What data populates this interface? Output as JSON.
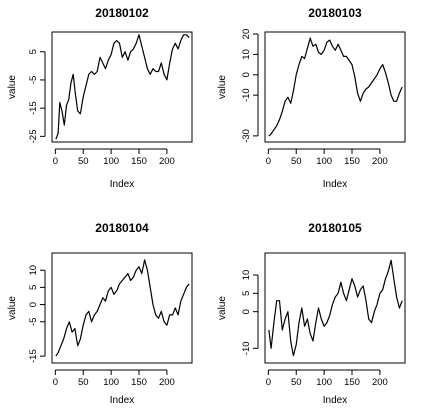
{
  "chart_data": [
    {
      "type": "line",
      "title": "20180102",
      "xlabel": "Index",
      "ylabel": "value",
      "xlim": [
        -6,
        245
      ],
      "ylim": [
        -27,
        12
      ],
      "xticks": [
        0,
        50,
        100,
        150,
        200
      ],
      "yticks": [
        -25,
        -15,
        -5,
        5
      ],
      "x": [
        1,
        5,
        8,
        12,
        16,
        20,
        24,
        28,
        32,
        36,
        40,
        45,
        50,
        55,
        60,
        65,
        70,
        75,
        80,
        85,
        90,
        95,
        100,
        105,
        110,
        115,
        120,
        125,
        130,
        135,
        140,
        145,
        150,
        155,
        160,
        165,
        170,
        175,
        180,
        185,
        190,
        195,
        200,
        205,
        210,
        215,
        220,
        225,
        230,
        235,
        240
      ],
      "values": [
        -26,
        -24,
        -13,
        -16,
        -21,
        -14,
        -12,
        -6,
        -3,
        -10,
        -16,
        -17,
        -11,
        -7,
        -3,
        -2,
        -3,
        -2,
        3,
        1,
        -1,
        2,
        4,
        8,
        9,
        8,
        3,
        5,
        2,
        5,
        6,
        8,
        11,
        7,
        3,
        -1,
        -3,
        -1,
        -2,
        -2,
        1,
        -3,
        -5,
        1,
        6,
        8,
        6,
        9,
        11,
        11,
        10
      ]
    },
    {
      "type": "line",
      "title": "20180103",
      "xlabel": "Index",
      "ylabel": "value",
      "xlim": [
        -6,
        245
      ],
      "ylim": [
        -33,
        21
      ],
      "xticks": [
        0,
        50,
        100,
        150,
        200
      ],
      "yticks": [
        -30,
        -10,
        0,
        10,
        20
      ],
      "x": [
        1,
        5,
        10,
        15,
        20,
        25,
        30,
        35,
        40,
        45,
        50,
        55,
        60,
        65,
        70,
        75,
        80,
        85,
        90,
        95,
        100,
        105,
        110,
        115,
        120,
        125,
        130,
        135,
        140,
        145,
        150,
        155,
        160,
        165,
        170,
        175,
        180,
        185,
        190,
        195,
        200,
        205,
        210,
        215,
        220,
        225,
        230,
        235,
        240
      ],
      "values": [
        -30,
        -29,
        -27,
        -25,
        -22,
        -18,
        -13,
        -11,
        -14,
        -8,
        0,
        5,
        9,
        8,
        13,
        18,
        14,
        15,
        11,
        10,
        12,
        16,
        17,
        14,
        12,
        15,
        12,
        9,
        9,
        7,
        5,
        -1,
        -9,
        -13,
        -9,
        -7,
        -6,
        -4,
        -2,
        0,
        3,
        5,
        1,
        -4,
        -10,
        -13,
        -13,
        -9,
        -6
      ]
    },
    {
      "type": "line",
      "title": "20180104",
      "xlabel": "Index",
      "ylabel": "value",
      "xlim": [
        -6,
        245
      ],
      "ylim": [
        -17,
        15
      ],
      "xticks": [
        0,
        50,
        100,
        150,
        200
      ],
      "yticks": [
        -15,
        -5,
        0,
        5,
        10
      ],
      "x": [
        1,
        5,
        10,
        15,
        20,
        25,
        30,
        35,
        40,
        45,
        50,
        55,
        60,
        65,
        70,
        75,
        80,
        85,
        90,
        95,
        100,
        105,
        110,
        115,
        120,
        125,
        130,
        135,
        140,
        145,
        150,
        155,
        160,
        165,
        170,
        175,
        180,
        185,
        190,
        195,
        200,
        205,
        210,
        215,
        220,
        225,
        230,
        235,
        240
      ],
      "values": [
        -15,
        -14,
        -12,
        -10,
        -7,
        -5,
        -8,
        -7,
        -12,
        -10,
        -6,
        -3,
        -2,
        -5,
        -3,
        -2,
        0,
        2,
        1,
        4,
        5,
        3,
        4,
        6,
        7,
        8,
        9,
        7,
        8,
        10,
        11,
        9,
        13,
        10,
        5,
        0,
        -3,
        -4,
        -2,
        -5,
        -6,
        -3,
        -3,
        -1,
        -3,
        1,
        3,
        5,
        6
      ]
    },
    {
      "type": "line",
      "title": "20180105",
      "xlabel": "Index",
      "ylabel": "value",
      "xlim": [
        -6,
        245
      ],
      "ylim": [
        -14,
        16
      ],
      "xticks": [
        0,
        50,
        100,
        150,
        200
      ],
      "yticks": [
        -10,
        0,
        5,
        10
      ],
      "x": [
        1,
        5,
        10,
        15,
        20,
        25,
        30,
        35,
        40,
        45,
        50,
        55,
        60,
        65,
        70,
        75,
        80,
        85,
        90,
        95,
        100,
        105,
        110,
        115,
        120,
        125,
        130,
        135,
        140,
        145,
        150,
        155,
        160,
        165,
        170,
        175,
        180,
        185,
        190,
        195,
        200,
        205,
        210,
        215,
        220,
        225,
        230,
        235,
        240
      ],
      "values": [
        -5,
        -10,
        -3,
        3,
        3,
        -5,
        -2,
        0,
        -8,
        -12,
        -9,
        -3,
        1,
        -4,
        -2,
        -6,
        -8,
        -3,
        1,
        -2,
        -4,
        -3,
        -1,
        2,
        4,
        5,
        8,
        5,
        3,
        6,
        9,
        7,
        4,
        6,
        7,
        3,
        -2,
        -3,
        0,
        2,
        5,
        6,
        9,
        11,
        14,
        9,
        4,
        1,
        3
      ]
    }
  ]
}
